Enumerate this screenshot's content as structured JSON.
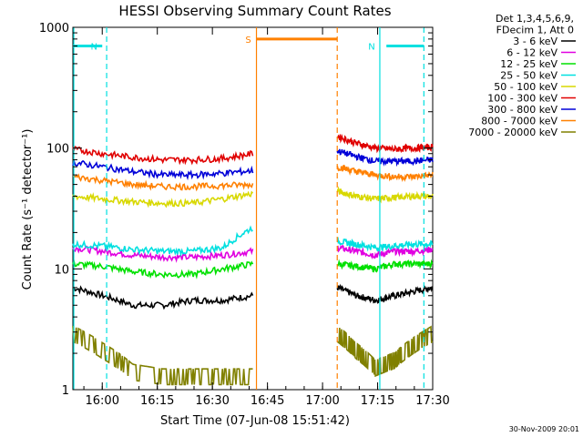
{
  "chart_data": {
    "type": "line",
    "title": "HESSI Observing Summary Count Rates",
    "xlabel": "Start Time (07-Jun-08 15:51:42)",
    "ylabel": "Count Rate (s⁻¹ detector⁻¹)",
    "yscale": "log",
    "ylim": [
      1,
      1000
    ],
    "xlim_minutes": [
      15.8667,
      17.5
    ],
    "x_ticks": [
      {
        "label": "16:00",
        "value": 16.0
      },
      {
        "label": "16:15",
        "value": 16.25
      },
      {
        "label": "16:30",
        "value": 16.5
      },
      {
        "label": "16:45",
        "value": 16.75
      },
      {
        "label": "17:00",
        "value": 17.0
      },
      {
        "label": "17:15",
        "value": 17.25
      },
      {
        "label": "17:30",
        "value": 17.5
      }
    ],
    "y_ticks": [
      {
        "label": "1",
        "value": 1
      },
      {
        "label": "10",
        "value": 10
      },
      {
        "label": "100",
        "value": 100
      },
      {
        "label": "1000",
        "value": 1000
      }
    ],
    "legend_header": [
      "Det 1,3,4,5,6,9,",
      "FDecim 1, Att 0"
    ],
    "legend_placement": "right",
    "data_gap": [
      16.6833,
      17.0667
    ],
    "series": [
      {
        "name": "3 - 6 keV",
        "color": "#000000",
        "pre": [
          7,
          6,
          5,
          5,
          5.5,
          5.5,
          6
        ],
        "post": [
          7,
          6,
          5.5,
          6,
          6.5,
          7
        ]
      },
      {
        "name": "6 - 12 keV",
        "color": "#e000e0",
        "pre": [
          15,
          14,
          13,
          12.5,
          12.5,
          13,
          14
        ],
        "post": [
          15,
          14,
          13,
          14,
          14,
          14.5
        ]
      },
      {
        "name": "12 - 25 keV",
        "color": "#00e000",
        "pre": [
          11,
          10.5,
          9.5,
          9,
          9,
          10,
          11
        ],
        "post": [
          11,
          10.5,
          10,
          11,
          11,
          11
        ]
      },
      {
        "name": "25 - 50 keV",
        "color": "#00e0e0",
        "pre": [
          16,
          15.5,
          14.5,
          14,
          14,
          15,
          22
        ],
        "post": [
          17,
          16,
          15,
          15.5,
          16,
          16
        ]
      },
      {
        "name": "50 - 100 keV",
        "color": "#d8d800",
        "pre": [
          40,
          38,
          36,
          35,
          35,
          38,
          42
        ],
        "post": [
          44,
          40,
          38,
          39,
          40,
          40
        ]
      },
      {
        "name": "100 - 300 keV",
        "color": "#e00000",
        "pre": [
          98,
          90,
          84,
          80,
          80,
          82,
          90
        ],
        "post": [
          125,
          110,
          100,
          98,
          100,
          102
        ]
      },
      {
        "name": "300 - 800 keV",
        "color": "#0000d8",
        "pre": [
          76,
          70,
          64,
          60,
          60,
          62,
          65
        ],
        "post": [
          95,
          85,
          78,
          78,
          78,
          80
        ]
      },
      {
        "name": "800 - 7000 keV",
        "color": "#ff8000",
        "pre": [
          58,
          54,
          50,
          48,
          48,
          49,
          50
        ],
        "post": [
          70,
          64,
          60,
          58,
          58,
          60
        ]
      },
      {
        "name": "7000 - 20000 keV",
        "color": "#808000",
        "pre": [
          2.5,
          1.8,
          1.2,
          1.1,
          1.1,
          1.1,
          1.1
        ],
        "post": [
          2.5,
          1.8,
          1.3,
          1.5,
          2.0,
          2.5
        ]
      }
    ],
    "markers": [
      {
        "label": "N",
        "color": "#00e0e0",
        "level": 700,
        "segments": [
          [
            15.8667,
            16.0
          ]
        ],
        "dashed": 16.02
      },
      {
        "label": "N",
        "color": "#00e0e0",
        "level": 700,
        "segments": [
          [
            17.29,
            17.46
          ]
        ],
        "solid": 17.26,
        "dashed": 17.46
      },
      {
        "label": "S",
        "color": "#ff8000",
        "level": 800,
        "segments": [
          [
            16.7,
            17.0667
          ]
        ],
        "solid": 16.7,
        "dashed": 17.0667
      }
    ]
  },
  "timestamp": "30-Nov-2009 20:01"
}
